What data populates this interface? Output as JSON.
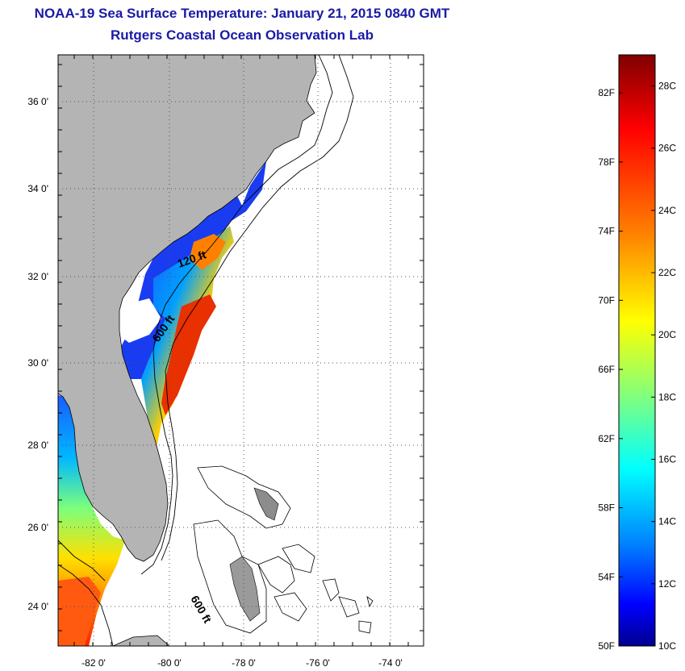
{
  "title": {
    "line1": "NOAA-19 Sea Surface Temperature:  January 21, 2015 0840 GMT",
    "line2": "Rutgers Coastal Ocean Observation Lab"
  },
  "map": {
    "lat_labels": [
      "36 0'",
      "34 0'",
      "32 0'",
      "30 0'",
      "28 0'",
      "26 0'",
      "24 0'"
    ],
    "lon_labels": [
      "-82 0'",
      "-80 0'",
      "-78 0'",
      "-76 0'",
      "-74 0'"
    ],
    "isobath_labels": [
      "120 ft",
      "600 ft",
      "600 ft"
    ],
    "colors": {
      "land": "#b4b4b4",
      "cloud": "#ffffff",
      "gridline": "#555555"
    }
  },
  "colorbar": {
    "f_labels": [
      "82F",
      "78F",
      "74F",
      "70F",
      "66F",
      "62F",
      "58F",
      "54F",
      "50F"
    ],
    "c_labels": [
      "28C",
      "26C",
      "24C",
      "22C",
      "20C",
      "18C",
      "16C",
      "14C",
      "12C",
      "10C"
    ],
    "range_c": [
      10,
      29
    ],
    "colors": [
      "#7f0000",
      "#ff0000",
      "#ff7f00",
      "#ffff00",
      "#7fff7f",
      "#00ffff",
      "#007fff",
      "#0000ff",
      "#00008f"
    ]
  }
}
